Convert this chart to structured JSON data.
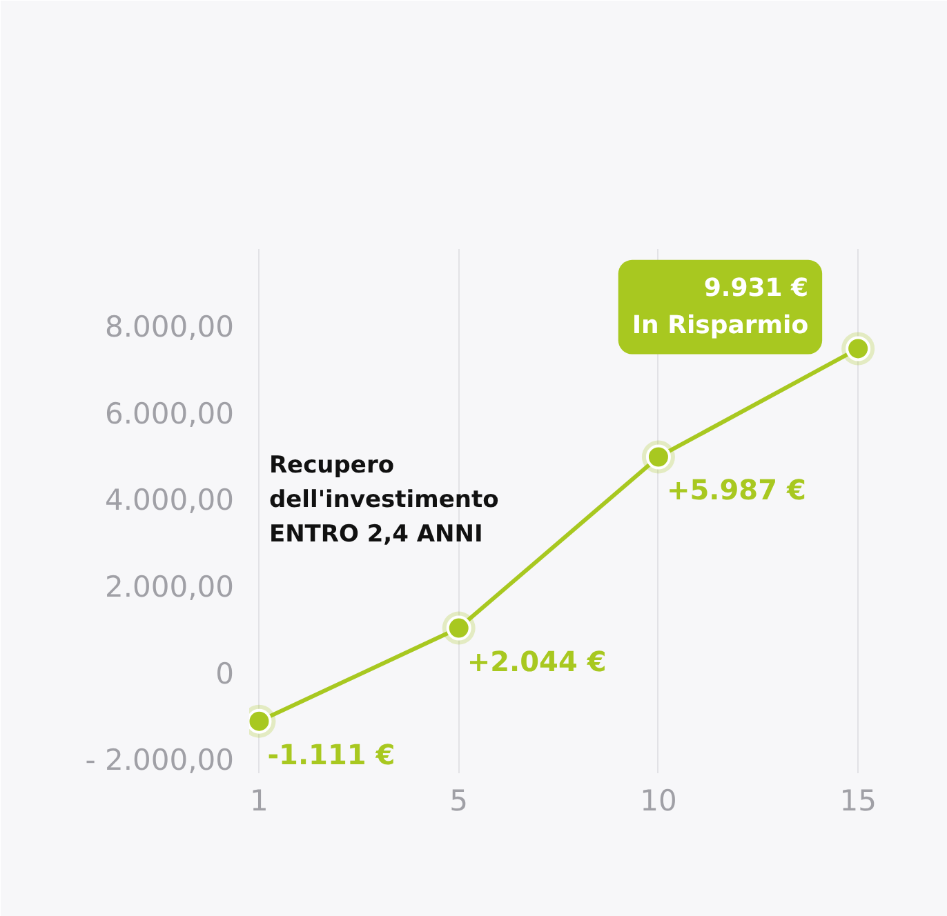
{
  "chart_data": {
    "type": "line",
    "categories": [
      "1",
      "5",
      "10",
      "15"
    ],
    "series": [
      {
        "color": "#a8c820",
        "values": [
          -1100,
          1050,
          5000,
          7500
        ]
      }
    ],
    "value_labels": [
      "-1.111 €",
      "+2.044 €",
      "+5.987 €",
      "9.931 €\nIn Risparmio"
    ],
    "ylim": [
      -2300,
      9800
    ],
    "yticks": [
      {
        "value": -2000,
        "label": "- 2.000,00"
      },
      0,
      {
        "value": 2000,
        "label": "2.000,00"
      },
      {
        "value": 4000,
        "label": "4.000,00"
      },
      {
        "value": 6000,
        "label": "6.000,00"
      },
      {
        "value": 8000,
        "label": "8.000,00"
      }
    ],
    "grid": "x",
    "marker": "circle",
    "line_style": "solid",
    "annotations": [
      "Recupero\ndell'investimento\nENTRO 2,4 ANNI"
    ]
  }
}
